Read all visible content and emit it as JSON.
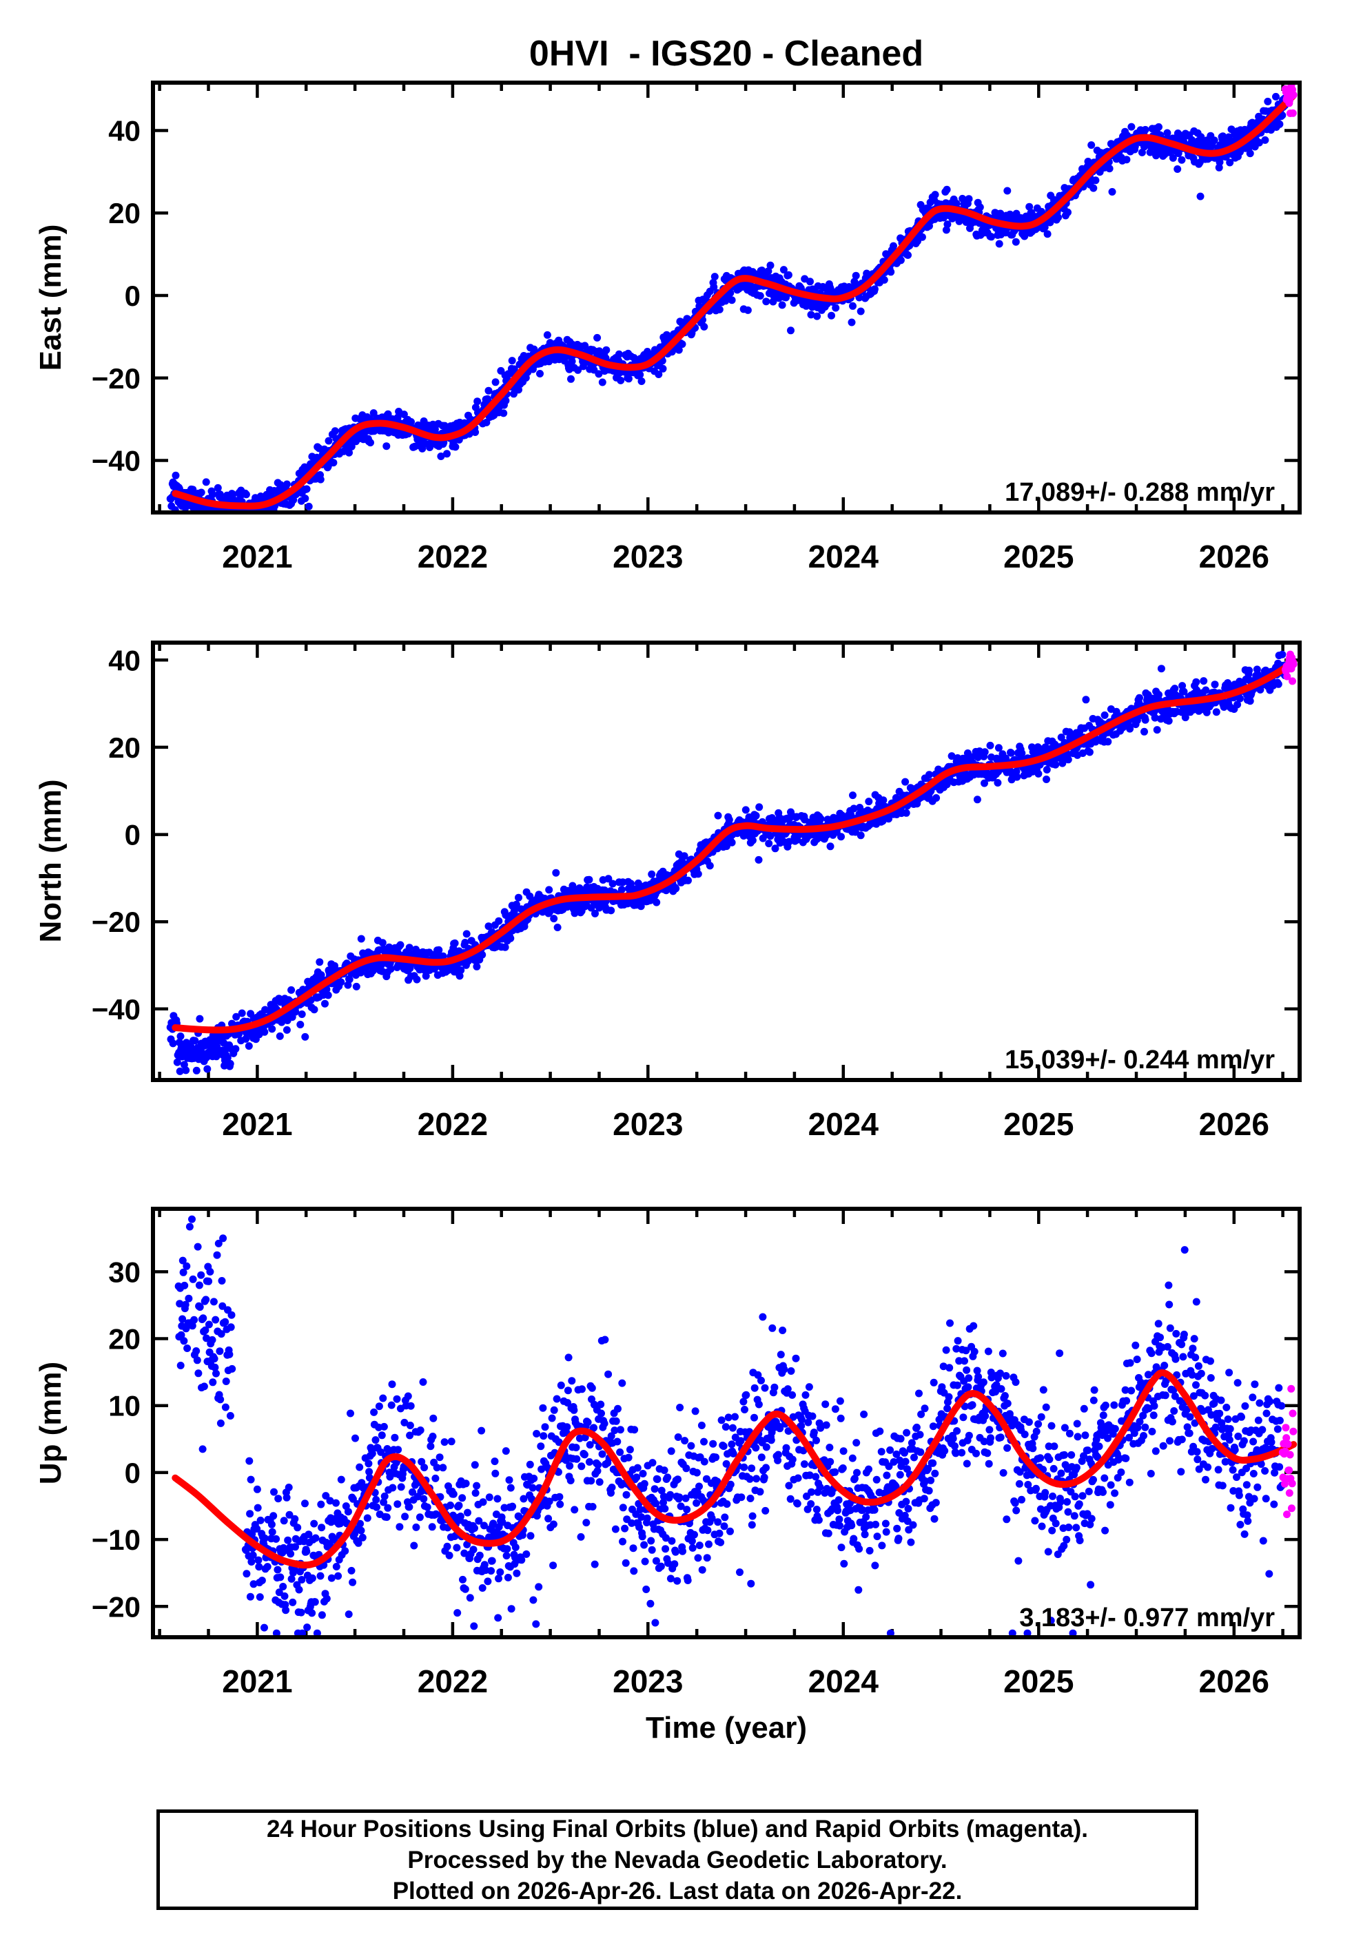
{
  "title": "0HVI  - IGS20 - Cleaned",
  "xlabel": "Time (year)",
  "footer": {
    "line1": "24 Hour Positions Using Final Orbits (blue) and Rapid Orbits (magenta).",
    "line2": "Processed by the Nevada Geodetic Laboratory.",
    "line3": "Plotted on 2026-Apr-26. Last data on 2026-Apr-22."
  },
  "colors": {
    "final_orbits": "#0000ff",
    "rapid_orbits": "#ff00ff",
    "model_curve": "#ff0000",
    "axis": "#000000",
    "background": "#ffffff"
  },
  "x_axis": {
    "xlim": [
      2020.466,
      2026.336
    ],
    "xticks": [
      2021,
      2022,
      2023,
      2024,
      2025,
      2026
    ],
    "minor_step_years": 0.25
  },
  "chart_data": [
    {
      "id": "east",
      "type": "scatter",
      "ylabel": "East (mm)",
      "annotation": "17.089+/- 0.288 mm/yr",
      "trend_mm_per_yr": 17.089,
      "trend_uncertainty": 0.288,
      "ylim": [
        -52.6,
        51.6
      ],
      "yticks": [
        -40,
        -20,
        0,
        20,
        40
      ],
      "model_curve": {
        "x": [
          2020.58,
          2020.75,
          2020.9,
          2021.05,
          2021.2,
          2021.35,
          2021.5,
          2021.62,
          2021.75,
          2021.9,
          2022.0,
          2022.1,
          2022.25,
          2022.4,
          2022.52,
          2022.65,
          2022.8,
          2022.95,
          2023.05,
          2023.2,
          2023.35,
          2023.47,
          2023.6,
          2023.75,
          2023.9,
          2024.0,
          2024.12,
          2024.27,
          2024.42,
          2024.5,
          2024.62,
          2024.77,
          2024.92,
          2025.02,
          2025.15,
          2025.3,
          2025.45,
          2025.55,
          2025.68,
          2025.82,
          2025.92,
          2026.02,
          2026.12,
          2026.22,
          2026.305
        ],
        "y": [
          -48.0,
          -50.3,
          -51.0,
          -50.5,
          -46.5,
          -39.5,
          -32.5,
          -31.0,
          -32.0,
          -34.3,
          -34.0,
          -31.5,
          -24.0,
          -16.0,
          -13.2,
          -14.3,
          -16.8,
          -17.3,
          -15.0,
          -8.0,
          -0.5,
          4.0,
          3.0,
          0.8,
          -0.6,
          -0.5,
          2.5,
          10.0,
          18.5,
          21.0,
          20.3,
          17.8,
          16.8,
          18.5,
          24.0,
          31.5,
          37.0,
          38.3,
          36.8,
          34.8,
          34.6,
          36.5,
          40.0,
          44.5,
          48.5
        ]
      },
      "scatter": {
        "start": 2020.555,
        "end": 2026.305,
        "step_days": 1,
        "sigma": 1.8,
        "outlier_prob": 0.03,
        "outlier_scale": 2.0,
        "drop_prob": 0.04,
        "rapid_start": 2026.262,
        "seed": 101,
        "gaps": [],
        "bias": null
      },
      "extra_cluster": null
    },
    {
      "id": "north",
      "type": "scatter",
      "ylabel": "North (mm)",
      "annotation": "15.039+/- 0.244 mm/yr",
      "trend_mm_per_yr": 15.039,
      "trend_uncertainty": 0.244,
      "ylim": [
        -56.3,
        44.0
      ],
      "yticks": [
        -40,
        -20,
        0,
        20,
        40
      ],
      "model_curve": {
        "x": [
          2020.58,
          2020.75,
          2020.9,
          2021.05,
          2021.2,
          2021.35,
          2021.5,
          2021.62,
          2021.75,
          2021.9,
          2022.0,
          2022.12,
          2022.25,
          2022.4,
          2022.55,
          2022.7,
          2022.85,
          2022.95,
          2023.1,
          2023.25,
          2023.4,
          2023.5,
          2023.62,
          2023.8,
          2023.95,
          2024.1,
          2024.25,
          2024.4,
          2024.52,
          2024.62,
          2024.75,
          2024.9,
          2025.02,
          2025.15,
          2025.3,
          2025.45,
          2025.58,
          2025.7,
          2025.82,
          2025.95,
          2026.08,
          2026.2,
          2026.305
        ],
        "y": [
          -44.3,
          -44.8,
          -44.5,
          -42.5,
          -38.5,
          -34.0,
          -30.0,
          -28.3,
          -28.6,
          -29.3,
          -28.8,
          -26.5,
          -22.5,
          -17.5,
          -15.0,
          -14.4,
          -14.2,
          -13.8,
          -11.0,
          -6.0,
          0.5,
          2.0,
          1.4,
          1.2,
          1.8,
          3.5,
          6.0,
          10.0,
          13.8,
          15.3,
          15.6,
          16.2,
          17.5,
          20.0,
          23.5,
          27.0,
          29.3,
          30.2,
          30.8,
          31.8,
          33.8,
          36.5,
          39.5
        ]
      },
      "scatter": {
        "start": 2020.555,
        "end": 2026.305,
        "step_days": 1,
        "sigma": 1.7,
        "outlier_prob": 0.03,
        "outlier_scale": 2.0,
        "drop_prob": 0.04,
        "rapid_start": 2026.262,
        "seed": 202,
        "gaps": [],
        "bias": {
          "start": 2020.59,
          "end": 2020.865,
          "offset": -4.8,
          "sigma": 2.4
        }
      },
      "extra_cluster": null
    },
    {
      "id": "up",
      "type": "scatter",
      "ylabel": "Up (mm)",
      "annotation": "3.183+/- 0.977 mm/yr",
      "trend_mm_per_yr": 3.183,
      "trend_uncertainty": 0.977,
      "ylim": [
        -24.6,
        39.4
      ],
      "yticks": [
        -20,
        -10,
        0,
        10,
        20,
        30
      ],
      "model_curve": {
        "x": [
          2020.58,
          2020.7,
          2020.85,
          2021.0,
          2021.15,
          2021.3,
          2021.45,
          2021.58,
          2021.67,
          2021.77,
          2021.9,
          2022.02,
          2022.15,
          2022.3,
          2022.45,
          2022.58,
          2022.67,
          2022.78,
          2022.92,
          2023.05,
          2023.18,
          2023.32,
          2023.45,
          2023.58,
          2023.67,
          2023.78,
          2023.92,
          2024.05,
          2024.18,
          2024.32,
          2024.45,
          2024.58,
          2024.67,
          2024.78,
          2024.92,
          2025.05,
          2025.18,
          2025.32,
          2025.45,
          2025.58,
          2025.65,
          2025.75,
          2025.88,
          2026.0,
          2026.1,
          2026.2,
          2026.305
        ],
        "y": [
          -0.8,
          -3.5,
          -7.5,
          -11.0,
          -13.3,
          -13.5,
          -9.5,
          -2.5,
          2.0,
          1.5,
          -3.5,
          -8.5,
          -10.5,
          -9.5,
          -3.5,
          4.5,
          6.2,
          4.0,
          -2.0,
          -6.3,
          -7.0,
          -4.5,
          1.5,
          7.0,
          8.7,
          5.5,
          -0.5,
          -3.8,
          -4.3,
          -2.0,
          3.5,
          9.8,
          11.8,
          9.0,
          2.5,
          -1.2,
          -1.5,
          1.5,
          7.0,
          13.5,
          14.8,
          11.5,
          5.5,
          2.2,
          2.0,
          2.8,
          4.2
        ]
      },
      "scatter": {
        "start": 2020.94,
        "end": 2026.305,
        "step_days": 1,
        "sigma": 5.0,
        "outlier_prob": 0.07,
        "outlier_scale": 2.0,
        "drop_prob": 0.05,
        "rapid_start": 2026.248,
        "seed": 303,
        "gaps": [],
        "bias": null
      },
      "extra_cluster": {
        "start": 2020.597,
        "end": 2020.873,
        "mean_start": 26.0,
        "mean_end": 17.0,
        "sigma": 6.5,
        "clip": [
          3.5,
          38.8
        ],
        "drop_prob": 0.12,
        "seed": 404
      }
    }
  ]
}
